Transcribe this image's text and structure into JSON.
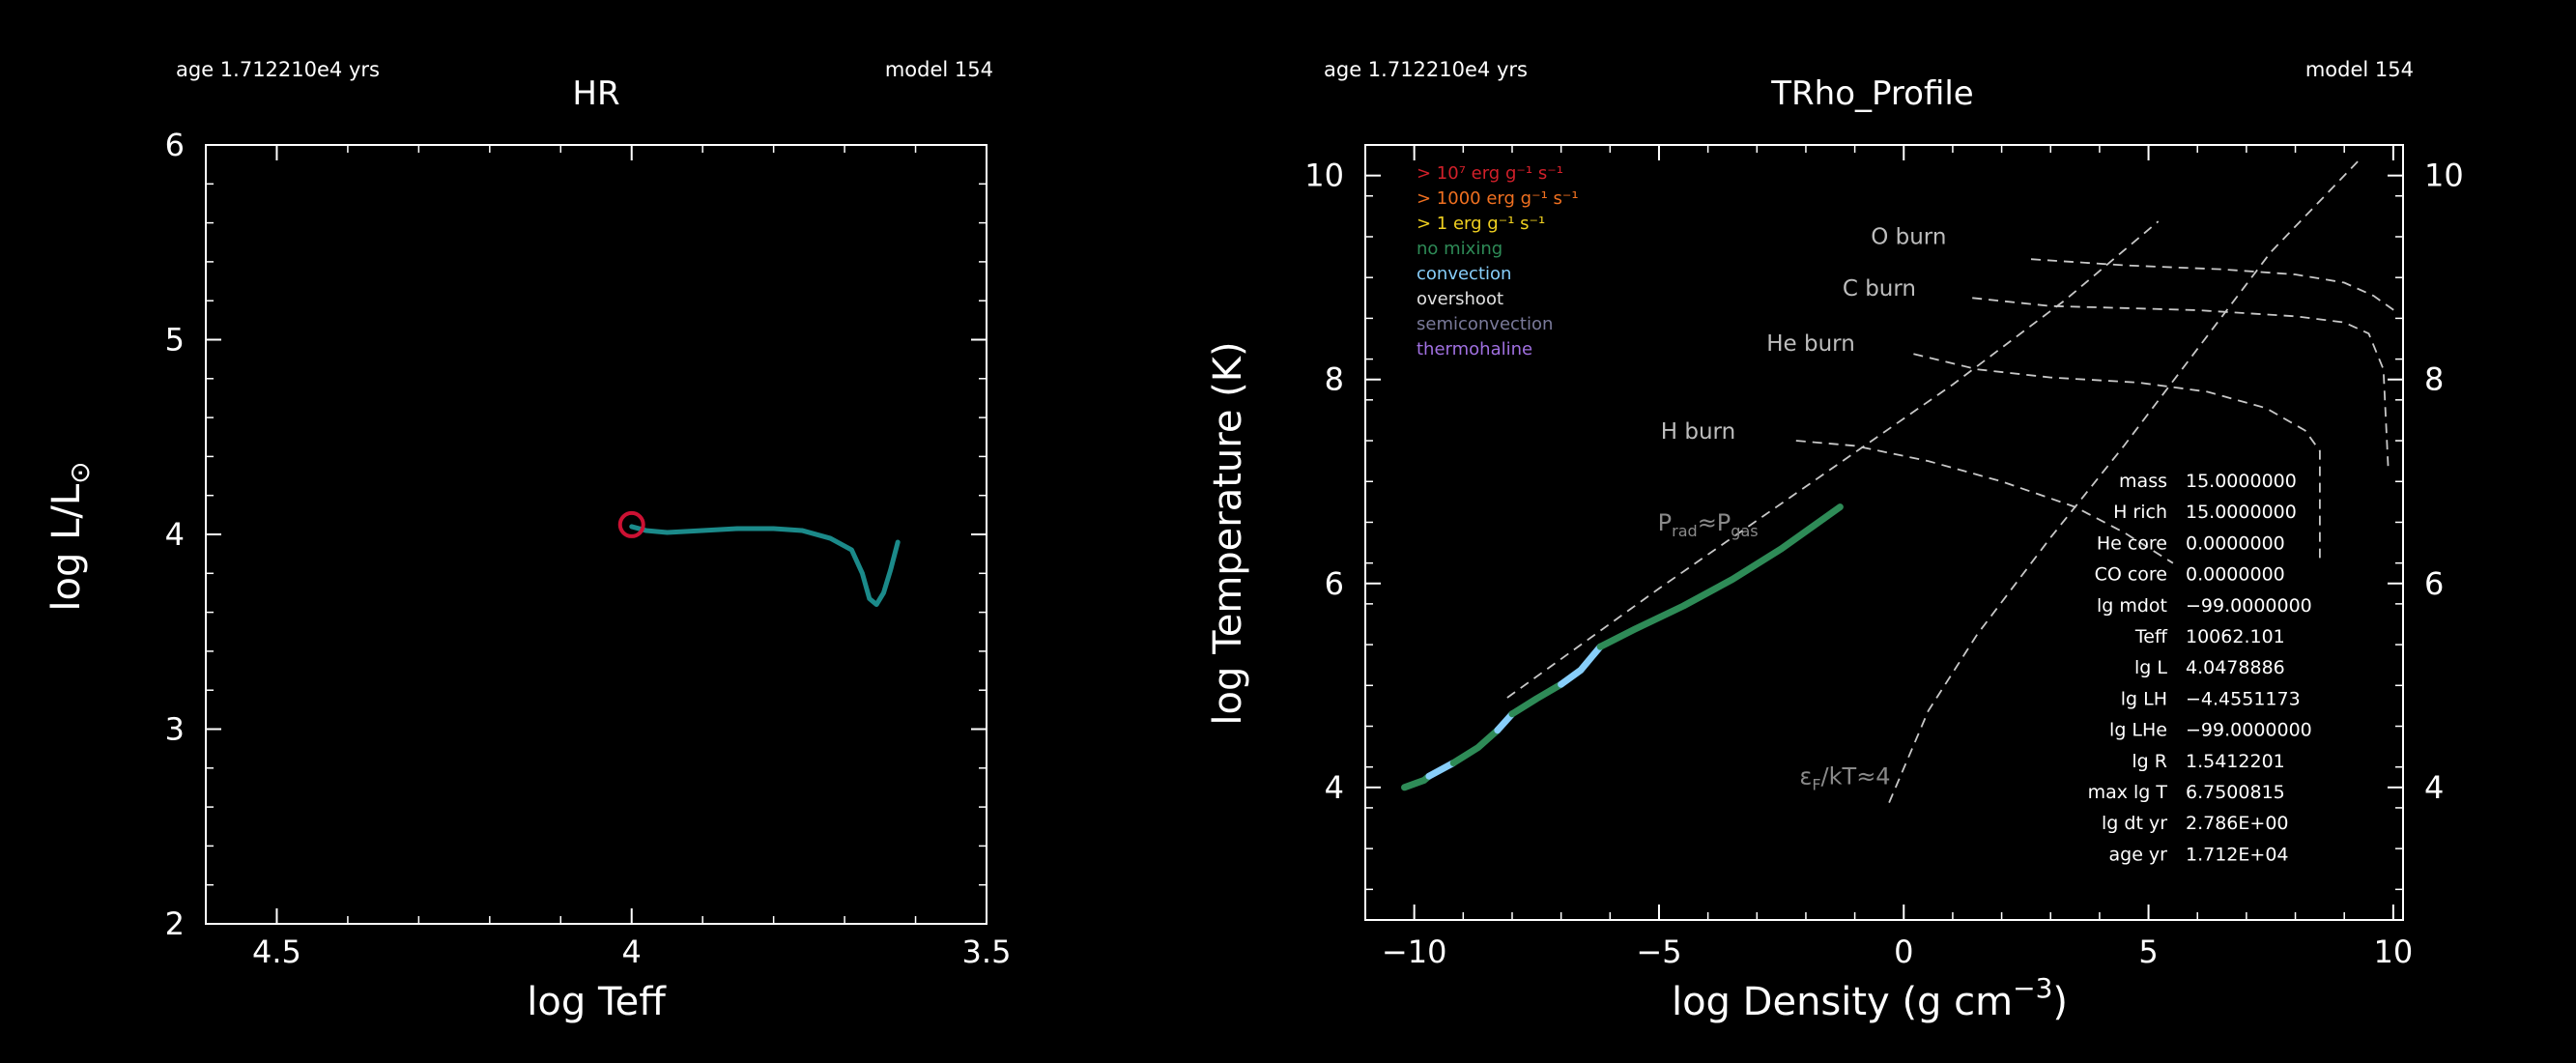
{
  "chart_data": [
    {
      "type": "line",
      "panel": "hr",
      "title": "HR",
      "header_left": "age 1.712210e4 yrs",
      "header_right": "model 154",
      "xlabel": "log Teff",
      "ylabel_main": "log L/L",
      "ylabel_sub": "⊙",
      "xlim": [
        4.6,
        3.5
      ],
      "ylim": [
        2,
        6
      ],
      "xticks": [
        4.5,
        4,
        3.5
      ],
      "xtick_labels": [
        "4.5",
        "4",
        "3.5"
      ],
      "yticks": [
        2,
        3,
        4,
        5,
        6
      ],
      "ytick_labels": [
        "2",
        "3",
        "4",
        "5",
        "6"
      ],
      "series": [
        {
          "name": "track",
          "color": "#1b8a8a",
          "points": [
            [
              4.0,
              4.04
            ],
            [
              3.98,
              4.02
            ],
            [
              3.95,
              4.01
            ],
            [
              3.9,
              4.02
            ],
            [
              3.85,
              4.03
            ],
            [
              3.8,
              4.03
            ],
            [
              3.76,
              4.02
            ],
            [
              3.72,
              3.98
            ],
            [
              3.69,
              3.92
            ],
            [
              3.675,
              3.8
            ],
            [
              3.665,
              3.67
            ],
            [
              3.655,
              3.64
            ],
            [
              3.645,
              3.7
            ],
            [
              3.635,
              3.82
            ],
            [
              3.625,
              3.96
            ]
          ]
        }
      ],
      "marker": {
        "point": [
          4.0,
          4.05
        ],
        "color": "#cc1133"
      }
    },
    {
      "type": "line",
      "panel": "trho",
      "title": "TRho_Profile",
      "header_left": "age 1.712210e4 yrs",
      "header_right": "model 154",
      "xlabel_main": "log Density (g cm",
      "xlabel_sup": "−3",
      "xlabel_tail": ")",
      "ylabel": "log Temperature (K)",
      "xlim": [
        -11,
        10.2
      ],
      "ylim": [
        2.7,
        10.3
      ],
      "xticks": [
        -10,
        -5,
        0,
        5,
        10
      ],
      "xtick_labels": [
        "−10",
        "−5",
        "0",
        "5",
        "10"
      ],
      "yticks": [
        4,
        6,
        8,
        10
      ],
      "ytick_labels": [
        "4",
        "6",
        "8",
        "10"
      ],
      "legend": [
        {
          "text": "> 10⁷ erg g⁻¹ s⁻¹",
          "color": "#d2202a"
        },
        {
          "text": "> 1000 erg g⁻¹ s⁻¹",
          "color": "#f07020"
        },
        {
          "text": "> 1 erg g⁻¹ s⁻¹",
          "color": "#f0d020"
        },
        {
          "text": "no mixing",
          "color": "#2e8b57"
        },
        {
          "text": "convection",
          "color": "#87cefa"
        },
        {
          "text": "overshoot",
          "color": "#e0e0e0"
        },
        {
          "text": "semiconvection",
          "color": "#7a7a9a"
        },
        {
          "text": "thermohaline",
          "color": "#a070e0"
        }
      ],
      "burn_lines": [
        {
          "label": "O burn",
          "label_at": [
            0.1,
            9.33
          ],
          "points": [
            [
              2.6,
              9.18
            ],
            [
              4.5,
              9.12
            ],
            [
              6.5,
              9.08
            ],
            [
              8,
              9.03
            ],
            [
              9,
              8.95
            ],
            [
              9.6,
              8.82
            ],
            [
              10.1,
              8.65
            ]
          ]
        },
        {
          "label": "C burn",
          "label_at": [
            -0.5,
            8.82
          ],
          "points": [
            [
              1.4,
              8.8
            ],
            [
              3,
              8.72
            ],
            [
              4.5,
              8.7
            ],
            [
              6,
              8.68
            ],
            [
              8,
              8.62
            ],
            [
              9,
              8.56
            ],
            [
              9.5,
              8.45
            ],
            [
              9.8,
              8.1
            ],
            [
              9.9,
              7.1
            ]
          ]
        },
        {
          "label": "He burn",
          "label_at": [
            -1.9,
            8.28
          ],
          "points": [
            [
              0.2,
              8.25
            ],
            [
              1.5,
              8.1
            ],
            [
              3,
              8.02
            ],
            [
              4.8,
              7.97
            ],
            [
              6.2,
              7.88
            ],
            [
              7.4,
              7.72
            ],
            [
              8.2,
              7.5
            ],
            [
              8.5,
              7.3
            ],
            [
              8.5,
              6.25
            ]
          ]
        },
        {
          "label": "H burn",
          "label_at": [
            -4.2,
            7.42
          ],
          "points": [
            [
              -2.2,
              7.4
            ],
            [
              -1,
              7.35
            ],
            [
              0.5,
              7.2
            ],
            [
              2,
              7
            ],
            [
              3.5,
              6.75
            ],
            [
              4.5,
              6.5
            ],
            [
              5.5,
              6.2
            ]
          ]
        }
      ],
      "dashed_lines": [
        {
          "name": "prad-pgas",
          "points": [
            [
              -8.1,
              4.88
            ],
            [
              -5,
              5.95
            ],
            [
              -2,
              6.95
            ],
            [
              1,
              7.95
            ],
            [
              3.3,
              8.78
            ],
            [
              5.2,
              9.55
            ]
          ]
        },
        {
          "name": "degeneracy",
          "points": [
            [
              -0.3,
              3.85
            ],
            [
              0.5,
              4.75
            ],
            [
              1.5,
              5.5
            ],
            [
              3,
              6.45
            ],
            [
              4.5,
              7.35
            ],
            [
              6,
              8.3
            ],
            [
              7.5,
              9.25
            ],
            [
              9.3,
              10.15
            ]
          ]
        }
      ],
      "annotations": [
        {
          "name": "prad-pgas-label",
          "main": "P",
          "sub1": "rad",
          "mid": "≈P",
          "sub2": "gas",
          "at": [
            -4.0,
            6.52
          ]
        },
        {
          "name": "degeneracy-label",
          "main": "ε",
          "sub1": "F",
          "mid": "/kT≈4",
          "at": [
            -1.2,
            4.03
          ]
        }
      ],
      "profile_segments": [
        {
          "color": "#2e8b57",
          "points": [
            [
              -10.2,
              4.0
            ],
            [
              -9.8,
              4.07
            ],
            [
              -9.7,
              4.11
            ]
          ]
        },
        {
          "color": "#87cefa",
          "points": [
            [
              -9.7,
              4.11
            ],
            [
              -9.2,
              4.24
            ]
          ]
        },
        {
          "color": "#2e8b57",
          "points": [
            [
              -9.2,
              4.24
            ],
            [
              -8.7,
              4.39
            ],
            [
              -8.3,
              4.56
            ]
          ]
        },
        {
          "color": "#87cefa",
          "points": [
            [
              -8.3,
              4.56
            ],
            [
              -8.0,
              4.72
            ]
          ]
        },
        {
          "color": "#2e8b57",
          "points": [
            [
              -8.0,
              4.72
            ],
            [
              -7.5,
              4.87
            ],
            [
              -7.0,
              5.01
            ]
          ]
        },
        {
          "color": "#87cefa",
          "points": [
            [
              -7.0,
              5.01
            ],
            [
              -6.6,
              5.15
            ],
            [
              -6.2,
              5.38
            ]
          ]
        },
        {
          "color": "#2e8b57",
          "points": [
            [
              -6.2,
              5.38
            ],
            [
              -5.5,
              5.55
            ],
            [
              -4.5,
              5.78
            ],
            [
              -3.5,
              6.04
            ],
            [
              -2.5,
              6.34
            ],
            [
              -1.8,
              6.58
            ],
            [
              -1.3,
              6.75
            ]
          ]
        }
      ],
      "info_table": [
        {
          "label": "mass",
          "value": "15.0000000"
        },
        {
          "label": "H rich",
          "value": "15.0000000"
        },
        {
          "label": "He core",
          "value": "0.0000000"
        },
        {
          "label": "CO core",
          "value": "0.0000000"
        },
        {
          "label": "lg mdot",
          "value": "−99.0000000"
        },
        {
          "label": "Teff",
          "value": "10062.101"
        },
        {
          "label": "lg L",
          "value": "4.0478886"
        },
        {
          "label": "lg LH",
          "value": "−4.4551173"
        },
        {
          "label": "lg LHe",
          "value": "−99.0000000"
        },
        {
          "label": "lg R",
          "value": "1.5412201"
        },
        {
          "label": "max lg T",
          "value": "6.7500815"
        },
        {
          "label": "lg dt yr",
          "value": "2.786E+00"
        },
        {
          "label": "age yr",
          "value": "1.712E+04"
        }
      ]
    }
  ]
}
